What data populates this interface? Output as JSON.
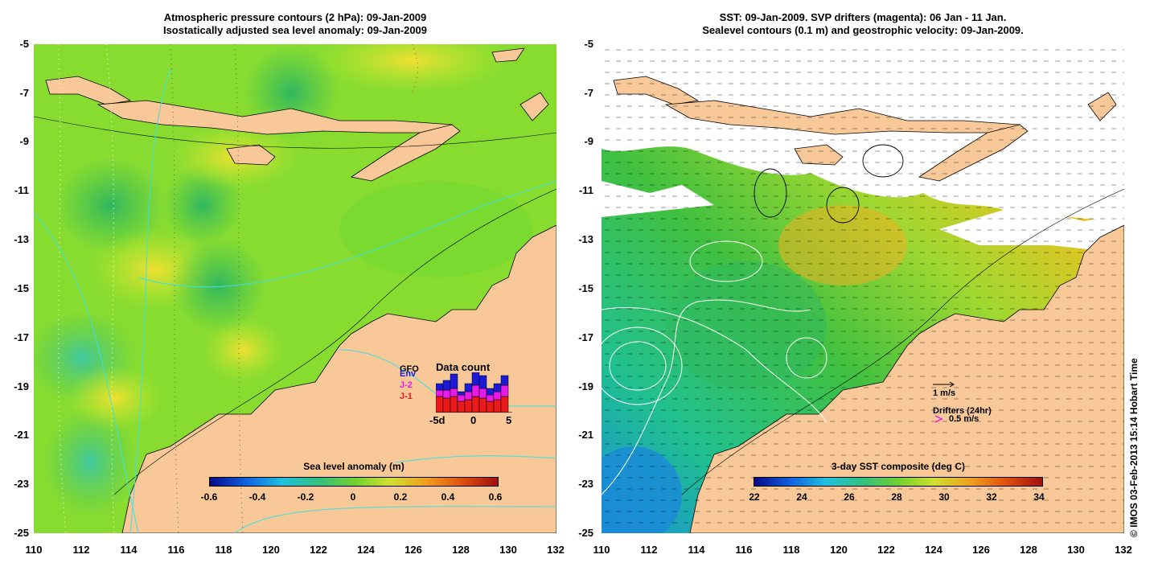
{
  "left_panel": {
    "title_line1": "Atmospheric pressure contours (2 hPa): 09-Jan-2009",
    "title_line2": "Isostatically adjusted sea level anomaly: 09-Jan-2009",
    "colorbar": {
      "title": "Sea level anomaly (m)",
      "labels": [
        "-0.6",
        "-0.4",
        "-0.2",
        "0",
        "0.2",
        "0.4",
        "0.6"
      ]
    },
    "data_count": {
      "title": "Data count",
      "legend": [
        "GFO",
        "Env",
        "J-2",
        "J-1"
      ],
      "legend_colors": [
        "#000000",
        "#1a1ad8",
        "#e81ae8",
        "#e81a1a"
      ],
      "x_labels": [
        "-5d",
        "0",
        "5"
      ]
    }
  },
  "right_panel": {
    "title_line1": "SST: 09-Jan-2009. SVP drifters (magenta): 06 Jan - 11 Jan.",
    "title_line2": "Sealevel contours (0.1 m) and geostrophic velocity: 09-Jan-2009.",
    "colorbar": {
      "title": "3-day SST composite (deg C)",
      "labels": [
        "22",
        "24",
        "26",
        "28",
        "30",
        "32",
        "34"
      ]
    },
    "velocity_scale": "1 m/s",
    "drifters_label": "Drifters (24hr)",
    "drifters_speed": "0.5 m/s"
  },
  "y_axis_labels": [
    "-5",
    "-7",
    "-9",
    "-11",
    "-13",
    "-15",
    "-17",
    "-19",
    "-21",
    "-23",
    "-25"
  ],
  "x_axis_labels": [
    "110",
    "112",
    "114",
    "116",
    "118",
    "120",
    "122",
    "124",
    "126",
    "128",
    "130",
    "132"
  ],
  "credit": "© IMOS 03-Feb-2013 15:14 Hobart Time",
  "colors": {
    "land": "#f8c898",
    "ocean_base_left": "#7ee02a",
    "cloud_white": "#ffffff",
    "contour_cyan": "#40e0e0"
  }
}
